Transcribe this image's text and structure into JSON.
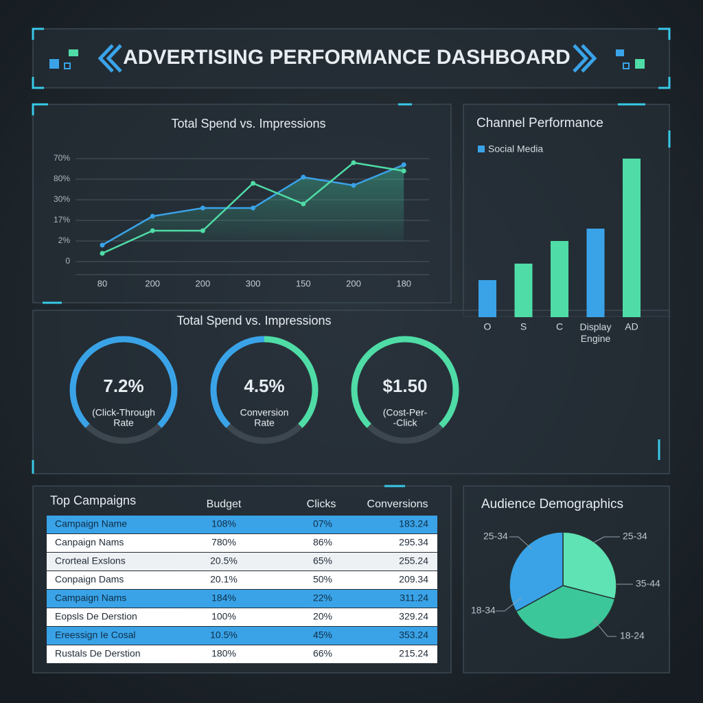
{
  "header": {
    "title": "ADVERTISING PERFORMANCE DASHBOARD"
  },
  "chart_data": [
    {
      "type": "line",
      "title": "Total Spend vs. Impressions",
      "categories": [
        "80",
        "200",
        "200",
        "300",
        "150",
        "200",
        "180"
      ],
      "series": [
        {
          "color": "#3aa3e8",
          "values": [
            8,
            22,
            26,
            26,
            41,
            37,
            47
          ]
        },
        {
          "color": "#4fdca6",
          "values": [
            4,
            15,
            15,
            38,
            28,
            48,
            44
          ]
        }
      ],
      "ylim": [
        0,
        50
      ],
      "yticks": [
        0,
        {
          "value": 10,
          "label": "2%"
        },
        {
          "value": 20,
          "label": "17%"
        },
        {
          "value": 30,
          "label": "30%"
        },
        {
          "value": 40,
          "label": "80%"
        },
        {
          "value": 50,
          "label": "70%"
        }
      ],
      "grid": true
    },
    {
      "type": "bar",
      "title": "Channel Performance",
      "categories": [
        "O",
        "S",
        "C",
        "Display Engine",
        "AD"
      ],
      "series": [
        {
          "name": "Social Media",
          "color": "#3aa3e8",
          "values": [
            1.8,
            2.6,
            3.7,
            4.3,
            7.7
          ]
        }
      ],
      "bar_colors": [
        "#3aa3e8",
        "#4fdca6",
        "#4fdca6",
        "#3aa3e8",
        "#4fdca6"
      ],
      "ylim": [
        0,
        8
      ]
    },
    {
      "type": "pie",
      "title": "Audience Demographics",
      "values": [
        29,
        38,
        33
      ],
      "colors": [
        "#5fe2b4",
        "#3cc79a",
        "#3aa3e8"
      ],
      "annotations": [
        "25-34",
        "25-34",
        "35-44",
        "18-34",
        "18-24"
      ]
    }
  ],
  "kpis": {
    "title": "Total Spend vs. Impressions",
    "items": [
      {
        "value": "7.2%",
        "label": [
          "(Click-Through",
          "Rate"
        ]
      },
      {
        "value": "4.5%",
        "label": [
          "Conversion",
          "Rate"
        ]
      },
      {
        "value": "$1.50",
        "label": [
          "(Cost-Per-",
          "-Click"
        ]
      }
    ]
  },
  "table": {
    "title": "Top Campaigns",
    "columns": [
      "Budget",
      "Clicks",
      "Conversions"
    ],
    "rows": [
      [
        "Campaign Name",
        "108%",
        "07%",
        "183.24"
      ],
      [
        "Canpaign Nams",
        "780%",
        "86%",
        "295.34"
      ],
      [
        "Crorteal Exslons",
        "20.5%",
        "65%",
        "255.24"
      ],
      [
        "Conpaign Dams",
        "20.1%",
        "50%",
        "209.34"
      ],
      [
        "Campaign Nams",
        "184%",
        "22%",
        "311.24"
      ],
      [
        "Eopsls De Derstion",
        "100%",
        "20%",
        "329.24"
      ],
      [
        "Ereessign Ie Cosal",
        "10.5%",
        "45%",
        "353.24"
      ],
      [
        "Rustals De Derstion",
        "180%",
        "66%",
        "215.24"
      ]
    ],
    "highlight_rows": [
      0,
      4,
      6
    ]
  }
}
